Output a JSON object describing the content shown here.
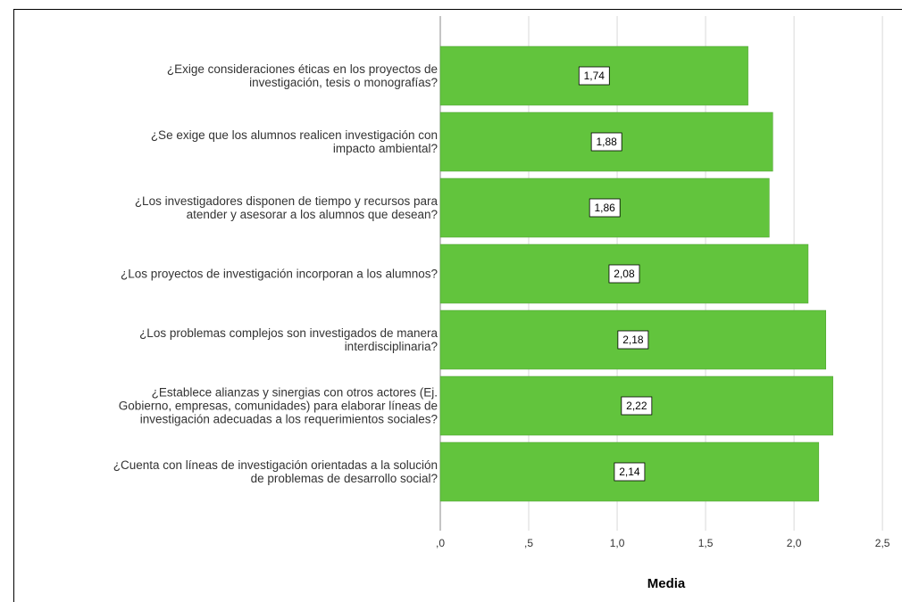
{
  "chart_data": {
    "type": "barh",
    "categories": [
      "¿Exige consideraciones éticas en los proyectos de\ninvestigación, tesis o monografías?",
      "¿Se exige que los alumnos realicen investigación con\nimpacto ambiental?",
      "¿Los investigadores disponen de tiempo y recursos para\natender y asesorar a los alumnos que desean?",
      "¿Los proyectos de investigación incorporan a los alumnos?",
      "¿Los problemas complejos son investigados de manera\ninterdisciplinaria?",
      "¿Establece alianzas y sinergias con otros actores (Ej.\nGobierno, empresas, comunidades) para elaborar líneas de\ninvestigación adecuadas a los requerimientos sociales?",
      "¿Cuenta con líneas de investigación orientadas a la solución\nde problemas de desarrollo social?"
    ],
    "values": [
      1.74,
      1.88,
      1.86,
      2.08,
      2.18,
      2.22,
      2.14
    ],
    "value_labels": [
      "1,74",
      "1,88",
      "1,86",
      "2,08",
      "2,18",
      "2,22",
      "2,14"
    ],
    "color": "#62c43d",
    "xlabel": "Media",
    "xlim": [
      0,
      2.56
    ],
    "xticks": [
      {
        "value": 0,
        "label": ",0"
      },
      {
        "value": 0.5,
        "label": ",5"
      },
      {
        "value": 1,
        "label": "1,0"
      },
      {
        "value": 1.5,
        "label": "1,5"
      },
      {
        "value": 2,
        "label": "2,0"
      },
      {
        "value": 2.5,
        "label": "2,5"
      }
    ],
    "grid": true
  }
}
